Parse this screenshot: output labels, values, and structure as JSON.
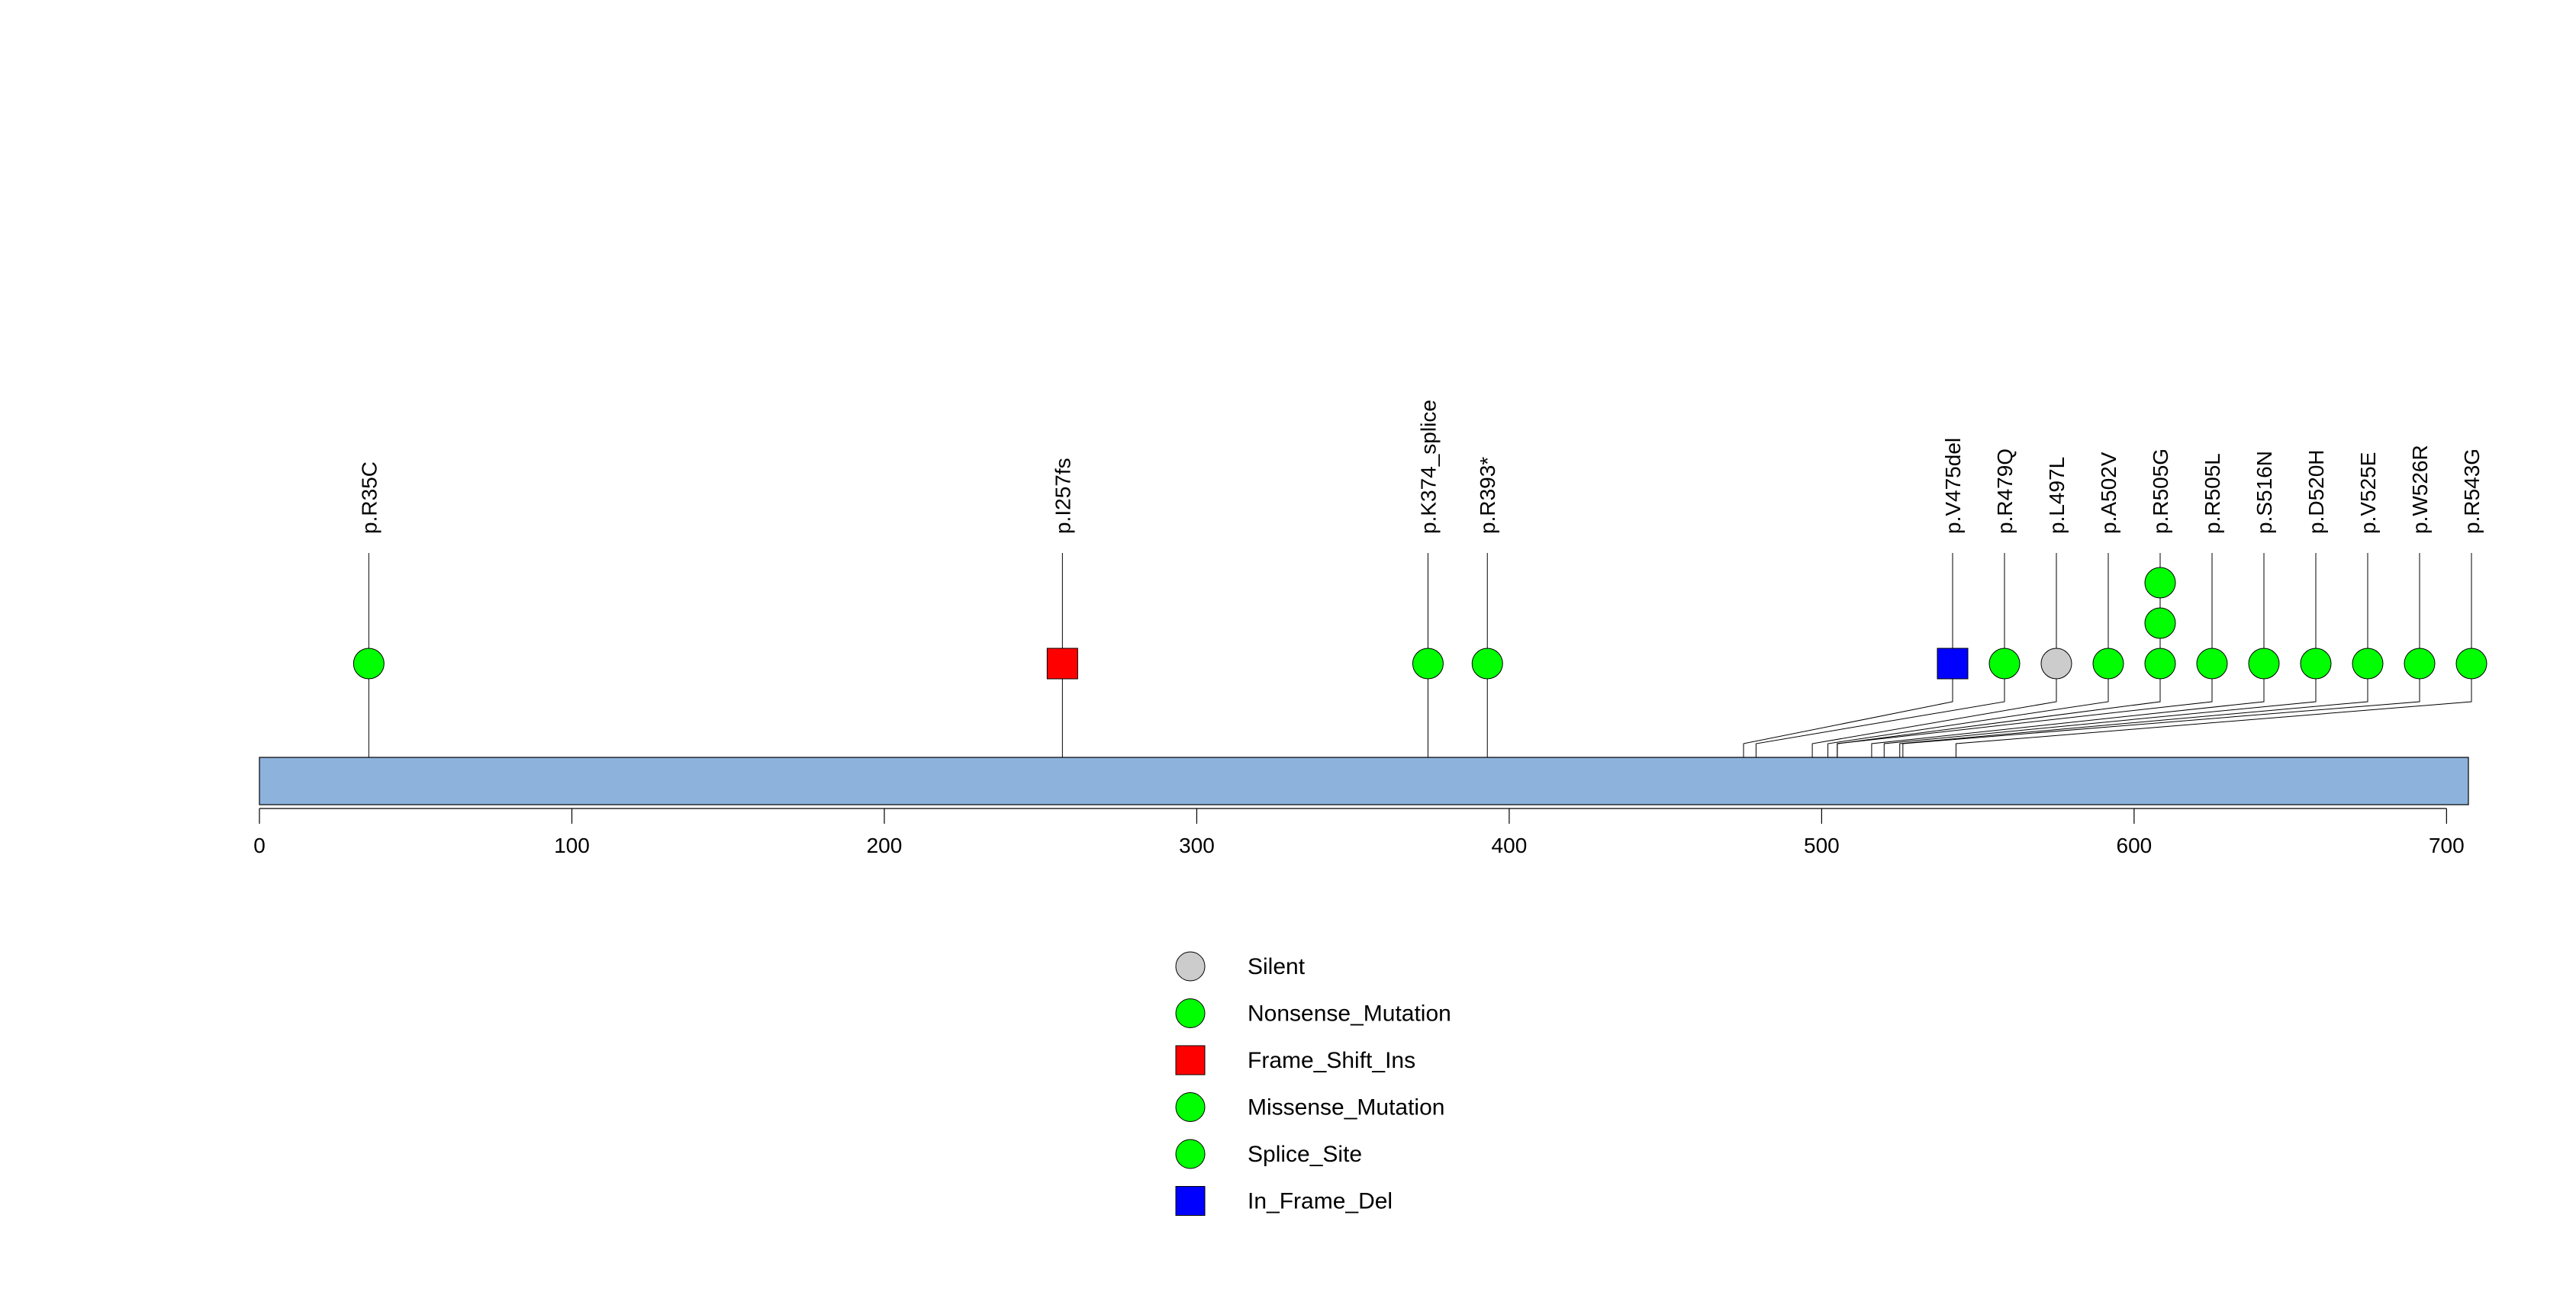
{
  "chart_data": {
    "type": "lollipop",
    "title": "",
    "xlabel": "",
    "ylabel": "",
    "xlim": [
      0,
      707
    ],
    "x_ticks": [
      0,
      100,
      200,
      300,
      400,
      500,
      600,
      700
    ],
    "mutations": [
      {
        "label": "p.R35C",
        "position": 35,
        "count": 1,
        "type": "Missense_Mutation"
      },
      {
        "label": "p.I257fs",
        "position": 257,
        "count": 1,
        "type": "Frame_Shift_Ins"
      },
      {
        "label": "p.K374_splice",
        "position": 374,
        "count": 1,
        "type": "Splice_Site"
      },
      {
        "label": "p.R393*",
        "position": 393,
        "count": 1,
        "type": "Nonsense_Mutation"
      },
      {
        "label": "p.V475del",
        "position": 475,
        "count": 1,
        "type": "In_Frame_Del"
      },
      {
        "label": "p.R479Q",
        "position": 479,
        "count": 1,
        "type": "Missense_Mutation"
      },
      {
        "label": "p.L497L",
        "position": 497,
        "count": 1,
        "type": "Silent"
      },
      {
        "label": "p.A502V",
        "position": 502,
        "count": 1,
        "type": "Missense_Mutation"
      },
      {
        "label": "p.R505G",
        "position": 505,
        "count": 3,
        "type": "Missense_Mutation"
      },
      {
        "label": "p.R505L",
        "position": 505,
        "count": 1,
        "type": "Missense_Mutation"
      },
      {
        "label": "p.S516N",
        "position": 516,
        "count": 1,
        "type": "Missense_Mutation"
      },
      {
        "label": "p.D520H",
        "position": 520,
        "count": 1,
        "type": "Missense_Mutation"
      },
      {
        "label": "p.V525E",
        "position": 525,
        "count": 1,
        "type": "Missense_Mutation"
      },
      {
        "label": "p.W526R",
        "position": 526,
        "count": 1,
        "type": "Missense_Mutation"
      },
      {
        "label": "p.R543G",
        "position": 543,
        "count": 1,
        "type": "Missense_Mutation"
      }
    ],
    "legend": [
      {
        "label": "Silent",
        "shape": "circle",
        "color": "#cccccc"
      },
      {
        "label": "Nonsense_Mutation",
        "shape": "circle",
        "color": "#00ff00"
      },
      {
        "label": "Frame_Shift_Ins",
        "shape": "square",
        "color": "#ff0000"
      },
      {
        "label": "Missense_Mutation",
        "shape": "circle",
        "color": "#00ff00"
      },
      {
        "label": "Splice_Site",
        "shape": "circle",
        "color": "#00ff00"
      },
      {
        "label": "In_Frame_Del",
        "shape": "square",
        "color": "#0000ff"
      }
    ],
    "colors": {
      "protein_bar": "#8db3dd",
      "Silent": "#cccccc",
      "Nonsense_Mutation": "#00ff00",
      "Missense_Mutation": "#00ff00",
      "Splice_Site": "#00ff00",
      "Frame_Shift_Ins": "#ff0000",
      "In_Frame_Del": "#0000ff"
    }
  }
}
